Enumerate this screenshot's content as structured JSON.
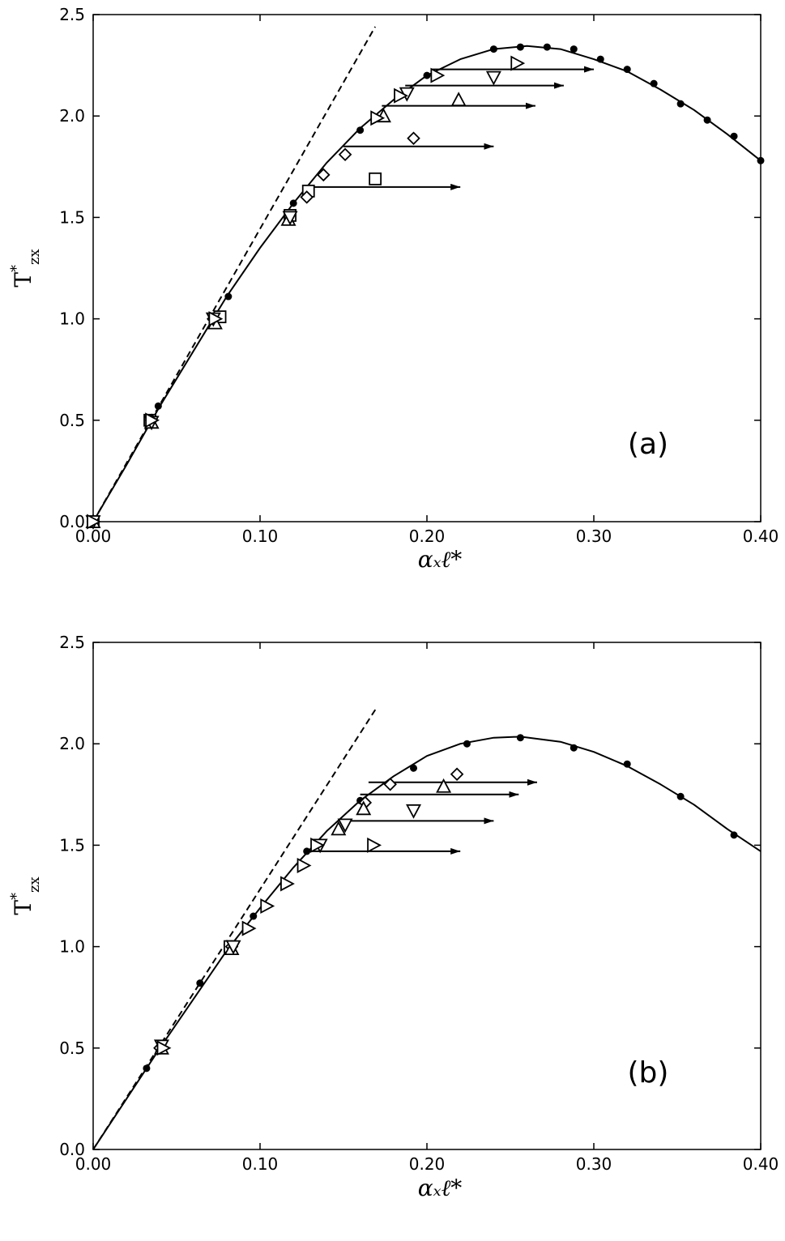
{
  "chart_data": [
    {
      "type": "scatter",
      "panel_label": "(a)",
      "xlabel": "αₓℓ*",
      "ylabel": "T*zx",
      "xlim": [
        0,
        0.4
      ],
      "ylim": [
        0,
        2.5
      ],
      "xticks": [
        "0.00",
        "0.10",
        "0.20",
        "0.30",
        "0.40"
      ],
      "yticks": [
        "0.0",
        "0.5",
        "1.0",
        "1.5",
        "2.0",
        "2.5"
      ],
      "grid": false,
      "dashed_line": [
        [
          0,
          0
        ],
        [
          0.169,
          2.44
        ]
      ],
      "solid_curve": [
        [
          0,
          0
        ],
        [
          0.02,
          0.28
        ],
        [
          0.04,
          0.57
        ],
        [
          0.06,
          0.84
        ],
        [
          0.08,
          1.11
        ],
        [
          0.1,
          1.35
        ],
        [
          0.12,
          1.57
        ],
        [
          0.14,
          1.77
        ],
        [
          0.16,
          1.94
        ],
        [
          0.18,
          2.08
        ],
        [
          0.2,
          2.2
        ],
        [
          0.22,
          2.28
        ],
        [
          0.24,
          2.33
        ],
        [
          0.26,
          2.345
        ],
        [
          0.28,
          2.33
        ],
        [
          0.3,
          2.28
        ],
        [
          0.32,
          2.22
        ],
        [
          0.34,
          2.13
        ],
        [
          0.36,
          2.03
        ],
        [
          0.38,
          1.91
        ],
        [
          0.4,
          1.78
        ]
      ],
      "filled_points": [
        [
          0.039,
          0.57
        ],
        [
          0.081,
          1.11
        ],
        [
          0.12,
          1.57
        ],
        [
          0.16,
          1.93
        ],
        [
          0.2,
          2.2
        ],
        [
          0.24,
          2.33
        ],
        [
          0.256,
          2.34
        ],
        [
          0.272,
          2.34
        ],
        [
          0.288,
          2.33
        ],
        [
          0.304,
          2.28
        ],
        [
          0.32,
          2.23
        ],
        [
          0.336,
          2.16
        ],
        [
          0.352,
          2.06
        ],
        [
          0.368,
          1.98
        ],
        [
          0.384,
          1.9
        ],
        [
          0.4,
          1.78
        ]
      ],
      "markers": [
        {
          "symbol": "square",
          "points": [
            [
              0,
              0
            ],
            [
              0.034,
              0.5
            ],
            [
              0.076,
              1.01
            ],
            [
              0.118,
              1.51
            ],
            [
              0.129,
              1.63
            ],
            [
              0.169,
              1.69
            ]
          ]
        },
        {
          "symbol": "diamond",
          "points": [
            [
              0,
              0
            ],
            [
              0.035,
              0.5
            ],
            [
              0.072,
              1.0
            ],
            [
              0.128,
              1.6
            ],
            [
              0.138,
              1.71
            ],
            [
              0.151,
              1.81
            ],
            [
              0.192,
              1.89
            ]
          ]
        },
        {
          "symbol": "triangle-up",
          "points": [
            [
              0,
              0
            ],
            [
              0.035,
              0.49
            ],
            [
              0.073,
              0.98
            ],
            [
              0.117,
              1.49
            ],
            [
              0.174,
              2.0
            ],
            [
              0.219,
              2.08
            ]
          ]
        },
        {
          "symbol": "triangle-down",
          "points": [
            [
              0,
              0
            ],
            [
              0.035,
              0.49
            ],
            [
              0.072,
              1.0
            ],
            [
              0.118,
              1.5
            ],
            [
              0.188,
              2.11
            ],
            [
              0.24,
              2.19
            ]
          ]
        },
        {
          "symbol": "triangle-right",
          "points": [
            [
              0,
              0
            ],
            [
              0.035,
              0.5
            ],
            [
              0.073,
              1.0
            ],
            [
              0.17,
              1.99
            ],
            [
              0.184,
              2.1
            ],
            [
              0.206,
              2.2
            ],
            [
              0.254,
              2.26
            ]
          ]
        }
      ],
      "arrows": [
        {
          "x0": 0.13,
          "x1": 0.22,
          "y": 1.65
        },
        {
          "x0": 0.15,
          "x1": 0.24,
          "y": 1.85
        },
        {
          "x0": 0.173,
          "x1": 0.265,
          "y": 2.05
        },
        {
          "x0": 0.187,
          "x1": 0.282,
          "y": 2.15
        },
        {
          "x0": 0.203,
          "x1": 0.3,
          "y": 2.23
        }
      ]
    },
    {
      "type": "scatter",
      "panel_label": "(b)",
      "xlabel": "αₓℓ*",
      "ylabel": "T*zx",
      "xlim": [
        0,
        0.4
      ],
      "ylim": [
        0,
        2.5
      ],
      "xticks": [
        "0.00",
        "0.10",
        "0.20",
        "0.30",
        "0.40"
      ],
      "yticks": [
        "0.0",
        "0.5",
        "1.0",
        "1.5",
        "2.0",
        "2.5"
      ],
      "grid": false,
      "dashed_line": [
        [
          0,
          0
        ],
        [
          0.17,
          2.18
        ]
      ],
      "solid_curve": [
        [
          0,
          0
        ],
        [
          0.02,
          0.25
        ],
        [
          0.04,
          0.5
        ],
        [
          0.06,
          0.74
        ],
        [
          0.08,
          0.98
        ],
        [
          0.1,
          1.19
        ],
        [
          0.12,
          1.39
        ],
        [
          0.14,
          1.57
        ],
        [
          0.16,
          1.72
        ],
        [
          0.18,
          1.84
        ],
        [
          0.2,
          1.94
        ],
        [
          0.22,
          2.0
        ],
        [
          0.24,
          2.03
        ],
        [
          0.256,
          2.035
        ],
        [
          0.28,
          2.01
        ],
        [
          0.3,
          1.96
        ],
        [
          0.32,
          1.89
        ],
        [
          0.34,
          1.8
        ],
        [
          0.36,
          1.7
        ],
        [
          0.38,
          1.58
        ],
        [
          0.4,
          1.47
        ]
      ],
      "filled_points": [
        [
          0.032,
          0.4
        ],
        [
          0.064,
          0.82
        ],
        [
          0.096,
          1.15
        ],
        [
          0.128,
          1.47
        ],
        [
          0.16,
          1.72
        ],
        [
          0.192,
          1.88
        ],
        [
          0.224,
          2.0
        ],
        [
          0.256,
          2.03
        ],
        [
          0.288,
          1.98
        ],
        [
          0.32,
          1.9
        ],
        [
          0.352,
          1.74
        ],
        [
          0.384,
          1.55
        ]
      ],
      "markers": [
        {
          "symbol": "square",
          "points": [
            [
              0.082,
              1.0
            ]
          ]
        },
        {
          "symbol": "diamond",
          "points": [
            [
              0.04,
              0.5
            ],
            [
              0.083,
              1.0
            ],
            [
              0.163,
              1.71
            ],
            [
              0.178,
              1.8
            ],
            [
              0.218,
              1.85
            ]
          ]
        },
        {
          "symbol": "triangle-up",
          "points": [
            [
              0.041,
              0.5
            ],
            [
              0.083,
              0.99
            ],
            [
              0.147,
              1.58
            ],
            [
              0.162,
              1.68
            ],
            [
              0.21,
              1.79
            ]
          ]
        },
        {
          "symbol": "triangle-down",
          "points": [
            [
              0.041,
              0.51
            ],
            [
              0.084,
              1.0
            ],
            [
              0.136,
              1.5
            ],
            [
              0.151,
              1.6
            ],
            [
              0.192,
              1.67
            ]
          ]
        },
        {
          "symbol": "triangle-right",
          "points": [
            [
              0.042,
              0.5
            ],
            [
              0.093,
              1.09
            ],
            [
              0.104,
              1.2
            ],
            [
              0.116,
              1.31
            ],
            [
              0.126,
              1.4
            ],
            [
              0.134,
              1.5
            ],
            [
              0.168,
              1.5
            ]
          ]
        }
      ],
      "arrows": [
        {
          "x0": 0.13,
          "x1": 0.22,
          "y": 1.47
        },
        {
          "x0": 0.15,
          "x1": 0.24,
          "y": 1.62
        },
        {
          "x0": 0.16,
          "x1": 0.255,
          "y": 1.75
        },
        {
          "x0": 0.165,
          "x1": 0.266,
          "y": 1.81
        }
      ]
    }
  ]
}
